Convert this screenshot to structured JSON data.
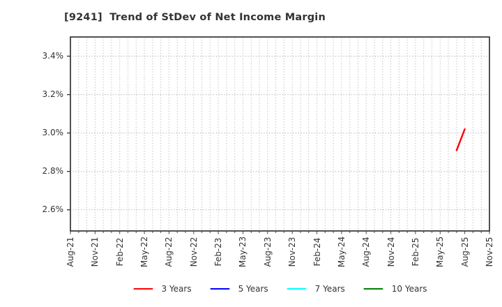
{
  "title": "[9241]  Trend of StDev of Net Income Margin",
  "colors": {
    "background": "#ffffff",
    "title_text": "#333333",
    "tick_text": "#333333",
    "spine": "#333333",
    "gridline": "#aaaaaa",
    "series_3y": "#ff0000",
    "series_5y": "#0000ff",
    "series_7y": "#00ffff",
    "series_10y": "#008000"
  },
  "chart_data": {
    "type": "line",
    "title": "[9241]  Trend of StDev of Net Income Margin",
    "xlabel": "",
    "ylabel": "",
    "grid": true,
    "grid_style": "dotted",
    "x_total_months": 51,
    "x_label_every_months": 3,
    "x_tick_labels": [
      "Aug-21",
      "Nov-21",
      "Feb-22",
      "May-22",
      "Aug-22",
      "Nov-22",
      "Feb-23",
      "May-23",
      "Aug-23",
      "Nov-23",
      "Feb-24",
      "May-24",
      "Aug-24",
      "Nov-24",
      "Feb-25",
      "May-25",
      "Aug-25",
      "Nov-25"
    ],
    "y_ticks": [
      {
        "value": 3.4,
        "label": "3.4%"
      },
      {
        "value": 3.2,
        "label": "3.2%"
      },
      {
        "value": 3.0,
        "label": "3.0%"
      },
      {
        "value": 2.8,
        "label": "2.8%"
      },
      {
        "value": 2.6,
        "label": "2.6%"
      }
    ],
    "ylim": [
      2.49,
      3.5
    ],
    "legend_position": "bottom-center",
    "legend": [
      {
        "label": "3 Years",
        "color": "#ff0000"
      },
      {
        "label": "5 Years",
        "color": "#0000ff"
      },
      {
        "label": "7 Years",
        "color": "#00ffff"
      },
      {
        "label": "10 Years",
        "color": "#008000"
      }
    ],
    "series": [
      {
        "name": "3 Years",
        "color": "#ff0000",
        "points": [
          {
            "month_index": 47,
            "x_label": "Jul-25",
            "value": 2.91
          },
          {
            "month_index": 48,
            "x_label": "Aug-25",
            "value": 3.02
          }
        ]
      },
      {
        "name": "5 Years",
        "color": "#0000ff",
        "points": []
      },
      {
        "name": "7 Years",
        "color": "#00ffff",
        "points": []
      },
      {
        "name": "10 Years",
        "color": "#008000",
        "points": []
      }
    ]
  }
}
